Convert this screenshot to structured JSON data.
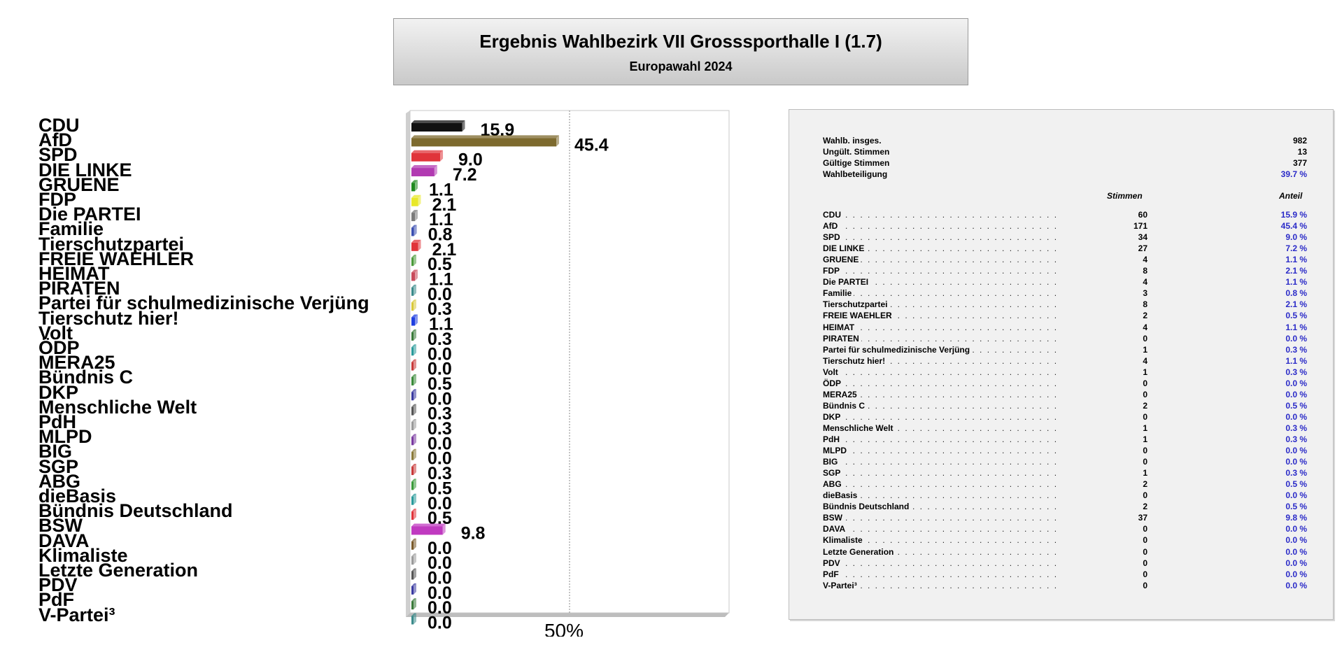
{
  "header": {
    "title": "Ergebnis Wahlbezirk VII Grosssporthalle I (1.7)",
    "subtitle": "Europawahl 2024"
  },
  "summary": {
    "rows": [
      {
        "label": "Wahlb. insges.",
        "value": "982"
      },
      {
        "label": "Ungült. Stimmen",
        "value": "13"
      },
      {
        "label": "Gültige Stimmen",
        "value": "377"
      },
      {
        "label": "Wahlbeteiligung",
        "value": "39.7 %"
      }
    ],
    "col_votes": "Stimmen",
    "col_share": "Anteil"
  },
  "chart_data": {
    "type": "bar",
    "orientation": "horizontal",
    "categories": [
      "CDU",
      "AfD",
      "SPD",
      "DIE LINKE",
      "GRUENE",
      "FDP",
      "Die PARTEI",
      "Familie",
      "Tierschutzpartei",
      "FREIE WAEHLER",
      "HEIMAT",
      "PIRATEN",
      "Partei für schulmedizinische Verjüng",
      "Tierschutz hier!",
      "Volt",
      "ÖDP",
      "MERA25",
      "Bündnis C",
      "DKP",
      "Menschliche Welt",
      "PdH",
      "MLPD",
      "BIG",
      "SGP",
      "ABG",
      "dieBasis",
      "Bündnis Deutschland",
      "BSW",
      "DAVA",
      "Klimaliste",
      "Letzte Generation",
      "PDV",
      "PdF",
      "V-Partei³"
    ],
    "values": [
      15.9,
      45.4,
      9.0,
      7.2,
      1.1,
      2.1,
      1.1,
      0.8,
      2.1,
      0.5,
      1.1,
      0.0,
      0.3,
      1.1,
      0.3,
      0.0,
      0.0,
      0.5,
      0.0,
      0.3,
      0.3,
      0.0,
      0.0,
      0.3,
      0.5,
      0.0,
      0.5,
      9.8,
      0.0,
      0.0,
      0.0,
      0.0,
      0.0,
      0.0
    ],
    "value_labels": [
      "15.9",
      "45.4",
      "9.0",
      "7.2",
      "1.1",
      "2.1",
      "1.1",
      "0.8",
      "2.1",
      "0.5",
      "1.1",
      "0.0",
      "0.3",
      "1.1",
      "0.3",
      "0.0",
      "0.0",
      "0.5",
      "0.0",
      "0.3",
      "0.3",
      "0.0",
      "0.0",
      "0.3",
      "0.5",
      "0.0",
      "0.5",
      "9.8",
      "0.0",
      "0.0",
      "0.0",
      "0.0",
      "0.0",
      "0.0"
    ],
    "votes": [
      60,
      171,
      34,
      27,
      4,
      8,
      4,
      3,
      8,
      2,
      4,
      0,
      1,
      4,
      1,
      0,
      0,
      2,
      0,
      1,
      1,
      0,
      0,
      1,
      2,
      0,
      2,
      37,
      0,
      0,
      0,
      0,
      0,
      0
    ],
    "share_labels": [
      "15.9 %",
      "45.4 %",
      "9.0 %",
      "7.2 %",
      "1.1 %",
      "2.1 %",
      "1.1 %",
      "0.8 %",
      "2.1 %",
      "0.5 %",
      "1.1 %",
      "0.0 %",
      "0.3 %",
      "1.1 %",
      "0.3 %",
      "0.0 %",
      "0.0 %",
      "0.5 %",
      "0.0 %",
      "0.3 %",
      "0.3 %",
      "0.0 %",
      "0.0 %",
      "0.3 %",
      "0.5 %",
      "0.0 %",
      "0.5 %",
      "9.8 %",
      "0.0 %",
      "0.0 %",
      "0.0 %",
      "0.0 %",
      "0.0 %",
      "0.0 %"
    ],
    "colors": [
      "#111111",
      "#7d6a2e",
      "#e0343a",
      "#b13ab1",
      "#1f8a1f",
      "#e8e82a",
      "#7a7a7a",
      "#3b4fb0",
      "#e0343a",
      "#4b9a3a",
      "#c84a5a",
      "#3a8a8a",
      "#d8c83a",
      "#1f3fe0",
      "#3a7a3a",
      "#2a9a9a",
      "#c83a3a",
      "#3a8a3a",
      "#3a3aa0",
      "#555555",
      "#9a9a9a",
      "#7a3aa0",
      "#8a7a3a",
      "#c83a3a",
      "#3a9a3a",
      "#2a9a9a",
      "#e0343a",
      "#c03ac0",
      "#7a5a2a",
      "#9a9a9a",
      "#555555",
      "#3a3aa0",
      "#3a7a3a",
      "#3a8a8a"
    ],
    "xlim": [
      0,
      100
    ],
    "reference_line": {
      "value": 50,
      "label": "50%"
    }
  }
}
